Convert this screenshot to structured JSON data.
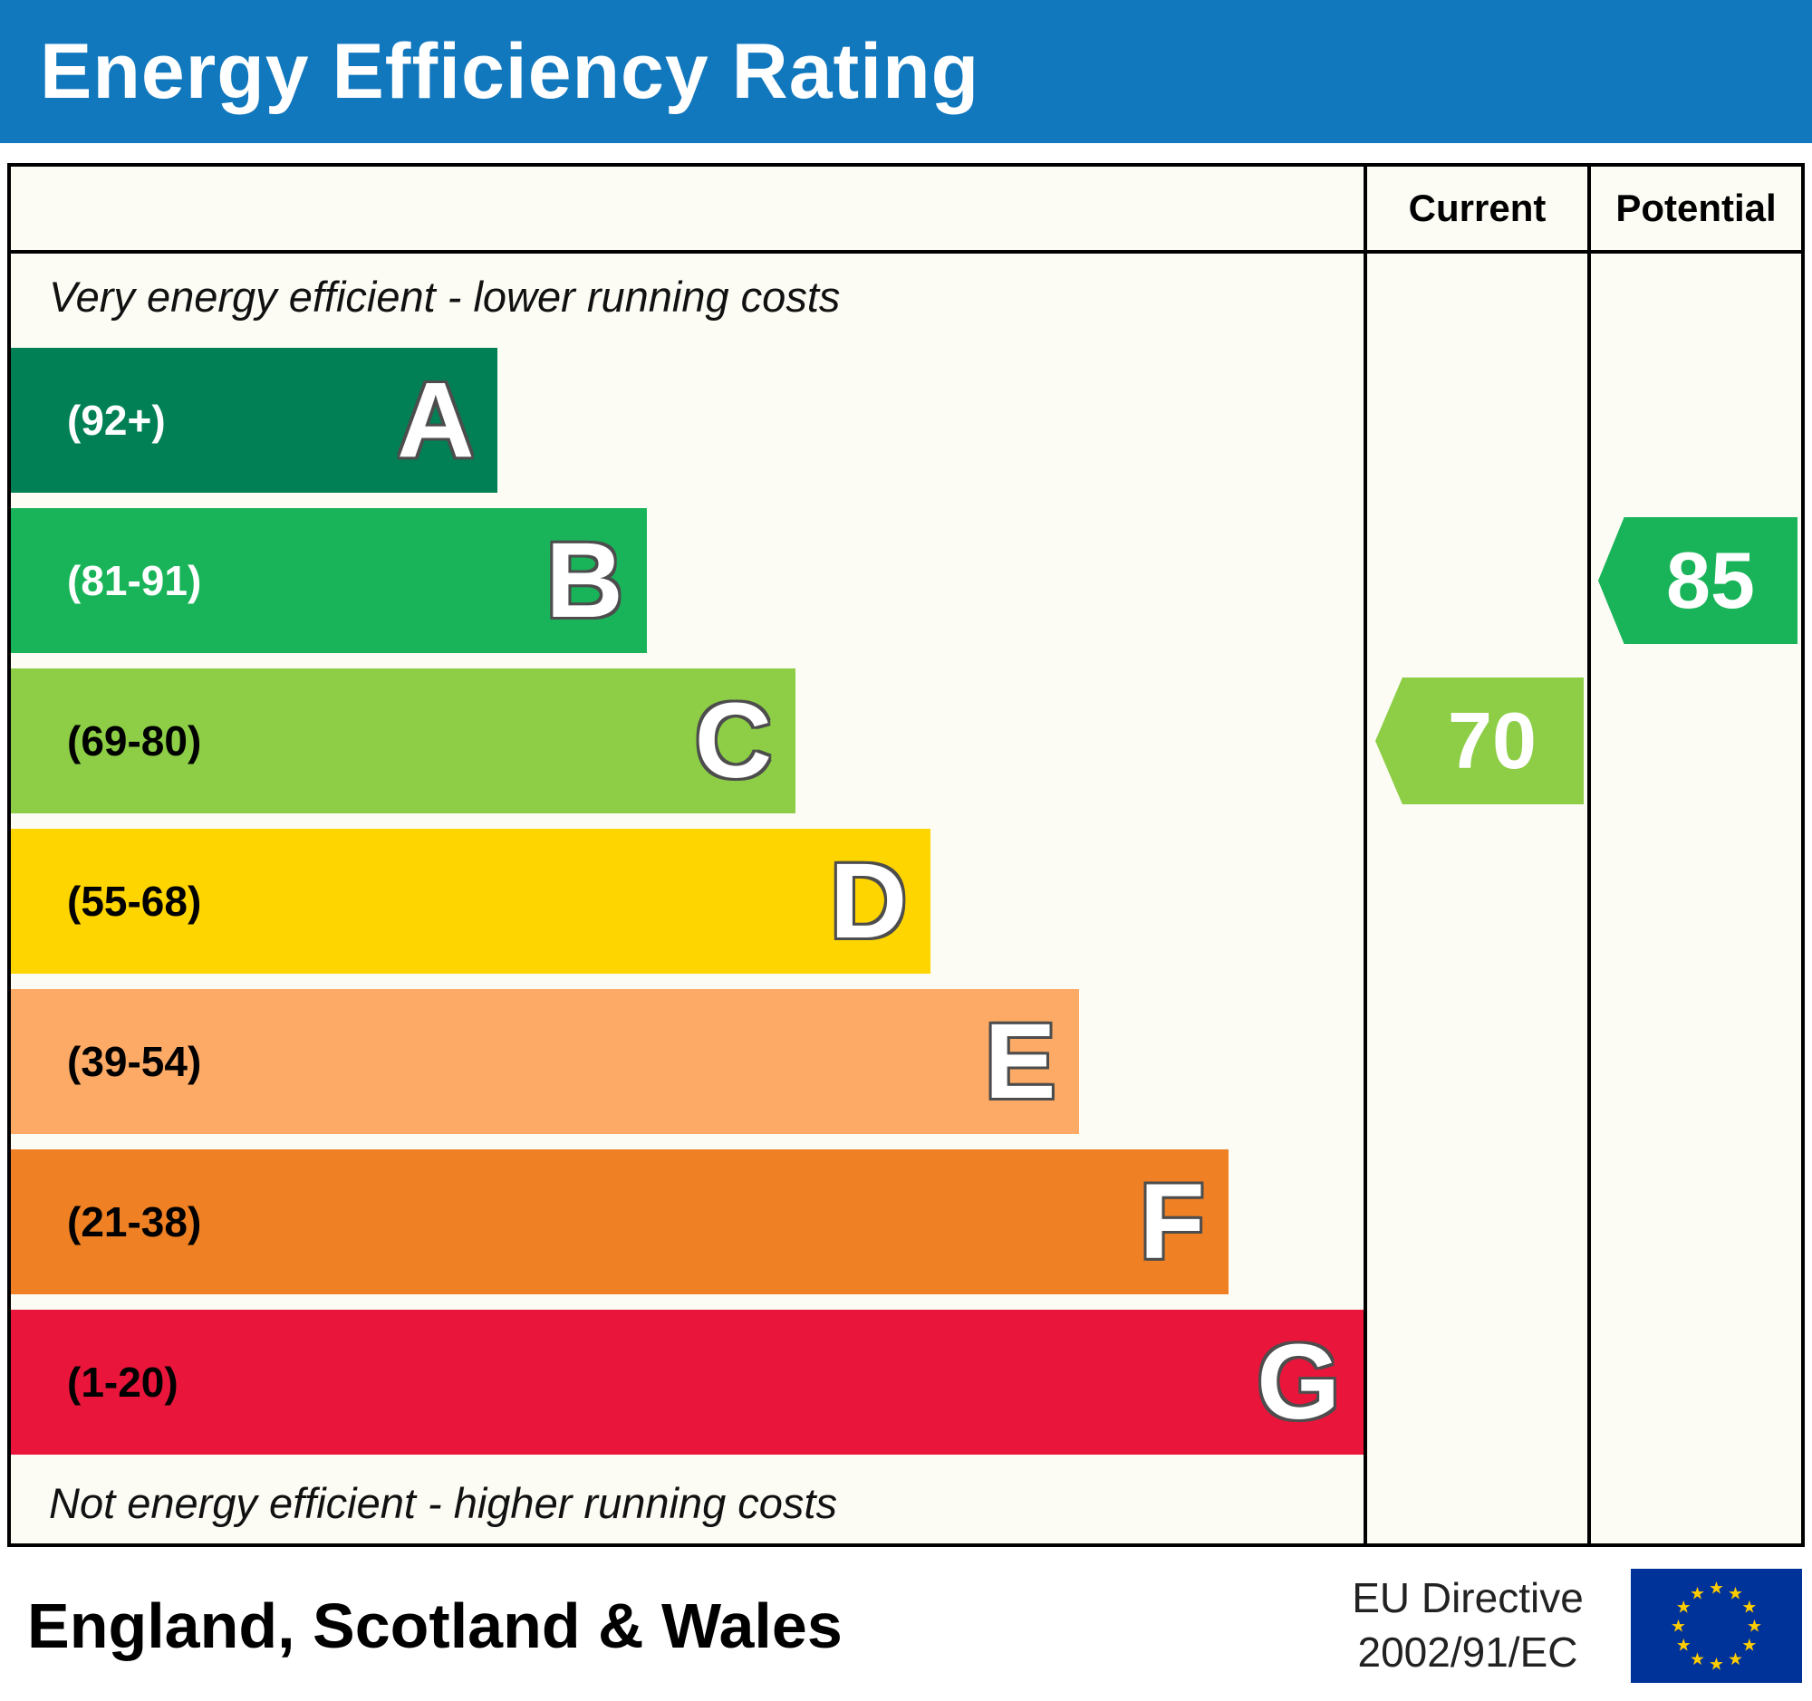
{
  "title": "Energy Efficiency Rating",
  "columns": {
    "current": "Current",
    "potential": "Potential"
  },
  "notes": {
    "top": "Very energy efficient - lower running costs",
    "bottom": "Not energy efficient - higher running costs"
  },
  "footer": {
    "region": "England, Scotland & Wales",
    "directive": [
      "EU Directive",
      "2002/91/EC"
    ]
  },
  "colors": {
    "banner_bg": "#1278be",
    "table_bg": "#fcfcf5",
    "border": "#000000",
    "flag_blue": "#003399",
    "flag_star": "#ffcc00"
  },
  "chart_data": {
    "type": "bar",
    "title": "Energy Efficiency Rating",
    "bands": [
      {
        "letter": "A",
        "range": "(92+)",
        "color": "#008054",
        "width_pct": 36,
        "range_text_color": "#ffffff"
      },
      {
        "letter": "B",
        "range": "(81-91)",
        "color": "#19b459",
        "width_pct": 47,
        "range_text_color": "#ffffff"
      },
      {
        "letter": "C",
        "range": "(69-80)",
        "color": "#8dce46",
        "width_pct": 58,
        "range_text_color": "#000000"
      },
      {
        "letter": "D",
        "range": "(55-68)",
        "color": "#ffd500",
        "width_pct": 68,
        "range_text_color": "#000000"
      },
      {
        "letter": "E",
        "range": "(39-54)",
        "color": "#fcaa65",
        "width_pct": 79,
        "range_text_color": "#000000"
      },
      {
        "letter": "F",
        "range": "(21-38)",
        "color": "#ef8023",
        "width_pct": 90,
        "range_text_color": "#000000"
      },
      {
        "letter": "G",
        "range": "(1-20)",
        "color": "#e9153b",
        "width_pct": 100,
        "range_text_color": "#000000"
      }
    ],
    "current": {
      "value": 70,
      "band": "C"
    },
    "potential": {
      "value": 85,
      "band": "B"
    }
  }
}
